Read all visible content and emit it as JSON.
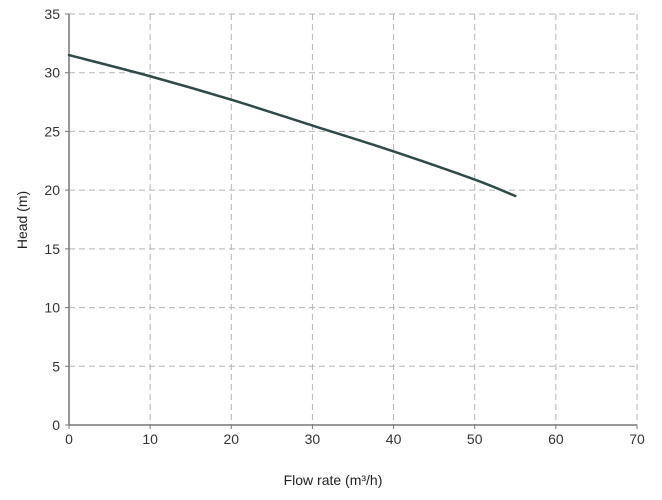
{
  "chart_data": {
    "type": "line",
    "title": "",
    "xlabel": "Flow rate (m³/h)",
    "ylabel": "Head (m)",
    "xlim": [
      0,
      70
    ],
    "ylim": [
      0,
      35
    ],
    "xticks": [
      0,
      10,
      20,
      30,
      40,
      50,
      60,
      70
    ],
    "yticks": [
      0,
      5,
      10,
      15,
      20,
      25,
      30,
      35
    ],
    "grid": true,
    "series": [
      {
        "x": [
          0,
          10,
          20,
          30,
          40,
          50,
          55
        ],
        "y": [
          31.5,
          29.7,
          27.7,
          25.5,
          23.3,
          20.9,
          19.5
        ],
        "color": "#2f4a48"
      }
    ]
  }
}
